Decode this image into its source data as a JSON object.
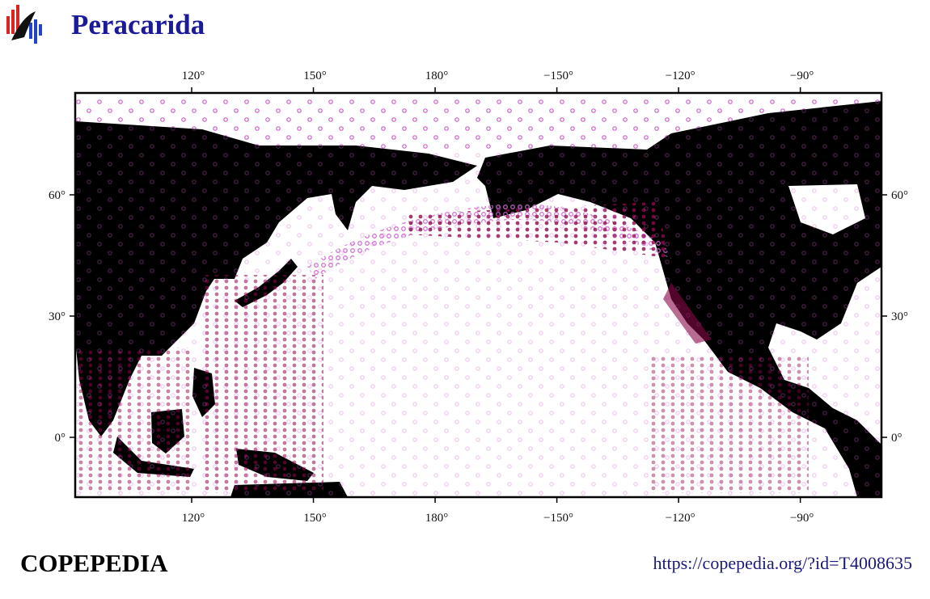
{
  "header": {
    "title": "Peracarida"
  },
  "map": {
    "xlim": [
      91.3,
      -70
    ],
    "ylim": [
      -14.8,
      85.2
    ],
    "xticks": [
      {
        "value": 120,
        "label": "120°"
      },
      {
        "value": 150,
        "label": "150°"
      },
      {
        "value": 180,
        "label": "180°"
      },
      {
        "value": -150,
        "label": "−150°"
      },
      {
        "value": -120,
        "label": "−120°"
      },
      {
        "value": -90,
        "label": "−90°"
      }
    ],
    "yticks": [
      {
        "value": 0,
        "label": "0°"
      },
      {
        "value": 30,
        "label": "30°"
      },
      {
        "value": 60,
        "label": "60°"
      }
    ]
  },
  "footer": {
    "brand": "COPEPEDIA",
    "url": "https://copepedia.org/?id=T4008635"
  }
}
